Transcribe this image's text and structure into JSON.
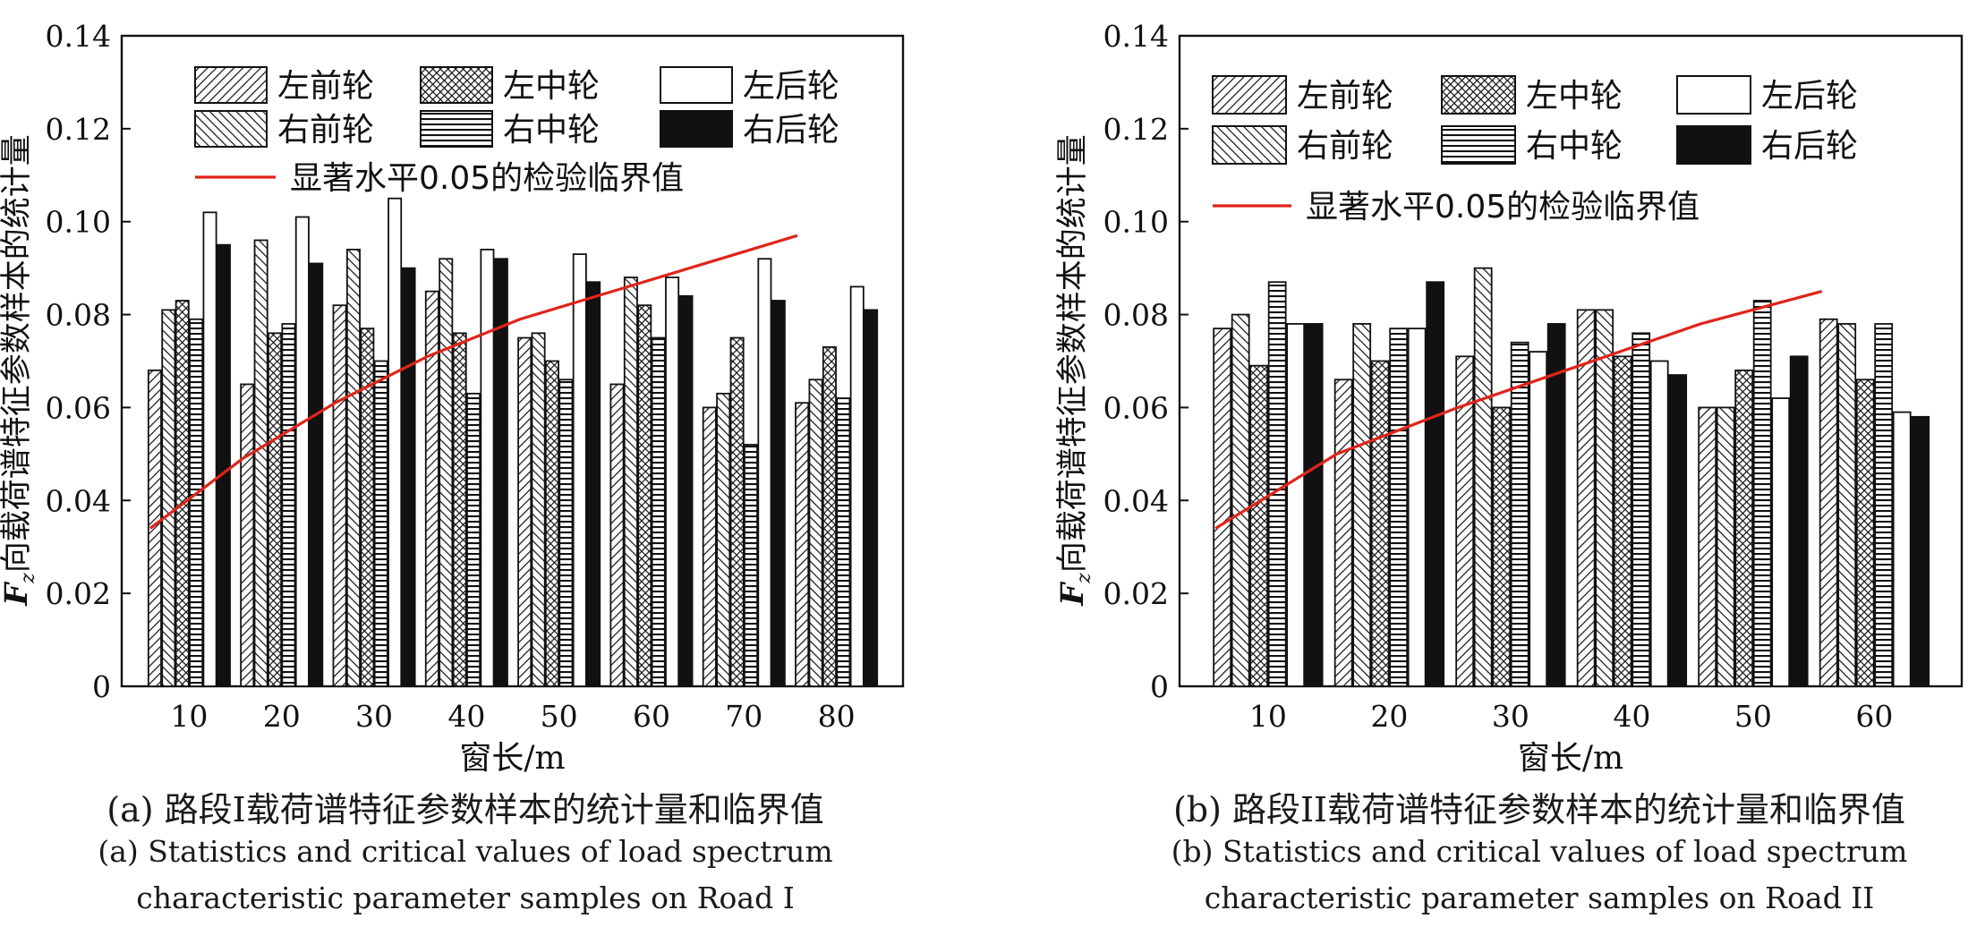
{
  "colors": {
    "critical_line": "#e0241b",
    "bar_stroke": "#111111",
    "dark_fill": "#111111"
  },
  "chart_data": [
    {
      "type": "bar",
      "panel": "a",
      "ylabel_symbol": "F",
      "ylabel_subscript": "z",
      "ylabel": "向载荷谱特征参数样本的统计量",
      "xlabel": "窗长/m",
      "ylim": [
        0,
        0.14
      ],
      "yticks": [
        "0",
        "0.02",
        "0.04",
        "0.06",
        "0.08",
        "0.10",
        "0.12",
        "0.14"
      ],
      "categories": [
        "10",
        "20",
        "30",
        "40",
        "50",
        "60",
        "70",
        "80"
      ],
      "series": [
        {
          "name": "左前轮",
          "pattern": "fwd-diag",
          "values": [
            0.068,
            0.065,
            0.082,
            0.085,
            0.075,
            0.065,
            0.06,
            0.061
          ]
        },
        {
          "name": "右前轮",
          "pattern": "back-diag",
          "values": [
            0.081,
            0.096,
            0.094,
            0.092,
            0.076,
            0.088,
            0.063,
            0.066
          ]
        },
        {
          "name": "左中轮",
          "pattern": "crosshatch",
          "values": [
            0.083,
            0.076,
            0.077,
            0.076,
            0.07,
            0.082,
            0.075,
            0.073
          ]
        },
        {
          "name": "右中轮",
          "pattern": "horizontal",
          "values": [
            0.079,
            0.078,
            0.07,
            0.063,
            0.066,
            0.075,
            0.052,
            0.062
          ]
        },
        {
          "name": "左后轮",
          "pattern": "white",
          "values": [
            0.102,
            0.101,
            0.105,
            0.094,
            0.093,
            0.088,
            0.092,
            0.086
          ]
        },
        {
          "name": "右后轮",
          "pattern": "black",
          "values": [
            0.095,
            0.091,
            0.09,
            0.092,
            0.087,
            0.084,
            0.083,
            0.081
          ]
        }
      ],
      "critical_line": {
        "name": "显著水平0.05的检验临界值",
        "x": [
          "10",
          "20",
          "30",
          "40",
          "50",
          "60",
          "70",
          "80"
        ],
        "values": [
          0.034,
          0.049,
          0.061,
          0.071,
          0.079,
          0.085,
          0.091,
          0.097
        ]
      },
      "caption_zh": "(a) 路段I载荷谱特征参数样本的统计量和临界值",
      "caption_en_1": "(a) Statistics and critical values of load spectrum",
      "caption_en_2": "characteristic parameter samples on Road I"
    },
    {
      "type": "bar",
      "panel": "b",
      "ylabel_symbol": "F",
      "ylabel_subscript": "z",
      "ylabel": "向载荷谱特征参数样本的统计量",
      "xlabel": "窗长/m",
      "ylim": [
        0,
        0.14
      ],
      "yticks": [
        "0",
        "0.02",
        "0.04",
        "0.06",
        "0.08",
        "0.10",
        "0.12",
        "0.14"
      ],
      "categories": [
        "10",
        "20",
        "30",
        "40",
        "50",
        "60"
      ],
      "series": [
        {
          "name": "左前轮",
          "pattern": "fwd-diag",
          "values": [
            0.077,
            0.066,
            0.071,
            0.081,
            0.06,
            0.079
          ]
        },
        {
          "name": "右前轮",
          "pattern": "back-diag",
          "values": [
            0.08,
            0.078,
            0.09,
            0.081,
            0.06,
            0.078
          ]
        },
        {
          "name": "左中轮",
          "pattern": "crosshatch",
          "values": [
            0.069,
            0.07,
            0.06,
            0.071,
            0.068,
            0.066
          ]
        },
        {
          "name": "右中轮",
          "pattern": "horizontal",
          "values": [
            0.087,
            0.077,
            0.074,
            0.076,
            0.083,
            0.078
          ]
        },
        {
          "name": "左后轮",
          "pattern": "white",
          "values": [
            0.078,
            0.077,
            0.072,
            0.07,
            0.062,
            0.059
          ]
        },
        {
          "name": "右后轮",
          "pattern": "black",
          "values": [
            0.078,
            0.087,
            0.078,
            0.067,
            0.071,
            0.058
          ]
        }
      ],
      "critical_line": {
        "name": "显著水平0.05的检验临界值",
        "x": [
          "10",
          "20",
          "30",
          "40",
          "50",
          "60"
        ],
        "values": [
          0.034,
          0.05,
          0.06,
          0.069,
          0.078,
          0.085
        ]
      },
      "caption_zh": "(b) 路段II载荷谱特征参数样本的统计量和临界值",
      "caption_en_1": "(b) Statistics and critical values of load spectrum",
      "caption_en_2": "characteristic parameter samples on Road II"
    }
  ]
}
